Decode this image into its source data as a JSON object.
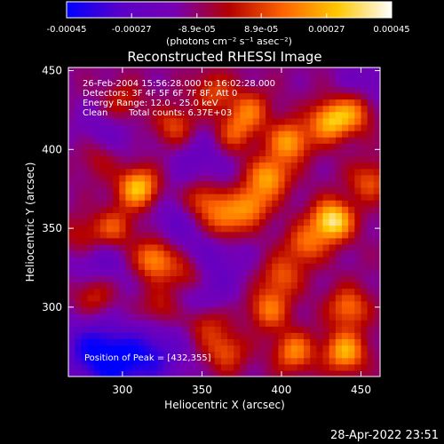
{
  "colorbar": {
    "ticks": [
      "-0.00045",
      "-0.00027",
      "-8.9e-05",
      "8.9e-05",
      "0.00027",
      "0.00045"
    ],
    "tick_values": [
      -0.00045,
      -0.00027,
      -8.9e-05,
      8.9e-05,
      0.00027,
      0.00045
    ],
    "range": [
      -0.00045,
      0.00045
    ],
    "unit": "(photons cm⁻² s⁻¹ asec⁻²)",
    "colors": [
      "#0000ff",
      "#5a00c8",
      "#7800b4",
      "#b40000",
      "#ff6400",
      "#ffc800",
      "#ffffff"
    ]
  },
  "chart_data": {
    "type": "heatmap",
    "title": "Reconstructed RHESSI Image",
    "xlabel": "Heliocentric X (arcsec)",
    "ylabel": "Heliocentric Y (arcsec)",
    "xlim": [
      266,
      462
    ],
    "ylim": [
      256,
      452
    ],
    "xticks": [
      "300",
      "350",
      "400",
      "450"
    ],
    "yticks": [
      "300",
      "350",
      "400",
      "450"
    ],
    "xtick_values": [
      300,
      350,
      400,
      450
    ],
    "ytick_values": [
      300,
      350,
      400,
      450
    ],
    "peak": [
      432,
      355
    ],
    "sources": [
      {
        "x": 432,
        "y": 355,
        "v": 1.0
      },
      {
        "x": 310,
        "y": 376,
        "v": 0.85
      },
      {
        "x": 392,
        "y": 383,
        "v": 0.7
      },
      {
        "x": 405,
        "y": 405,
        "v": 0.7
      },
      {
        "x": 430,
        "y": 418,
        "v": 0.75
      },
      {
        "x": 446,
        "y": 424,
        "v": 0.6
      },
      {
        "x": 380,
        "y": 365,
        "v": 0.6
      },
      {
        "x": 364,
        "y": 355,
        "v": 0.55
      },
      {
        "x": 350,
        "y": 368,
        "v": 0.55
      },
      {
        "x": 320,
        "y": 331,
        "v": 0.7
      },
      {
        "x": 295,
        "y": 350,
        "v": 0.5
      },
      {
        "x": 392,
        "y": 299,
        "v": 0.55
      },
      {
        "x": 440,
        "y": 272,
        "v": 0.75
      },
      {
        "x": 408,
        "y": 272,
        "v": 0.6
      },
      {
        "x": 442,
        "y": 300,
        "v": 0.55
      },
      {
        "x": 352,
        "y": 290,
        "v": 0.45
      },
      {
        "x": 365,
        "y": 272,
        "v": 0.45
      },
      {
        "x": 325,
        "y": 300,
        "v": 0.4
      },
      {
        "x": 282,
        "y": 308,
        "v": 0.4
      },
      {
        "x": 333,
        "y": 415,
        "v": 0.45
      },
      {
        "x": 357,
        "y": 437,
        "v": 0.4
      },
      {
        "x": 380,
        "y": 425,
        "v": 0.5
      },
      {
        "x": 300,
        "y": 430,
        "v": 0.35
      },
      {
        "x": 340,
        "y": 320,
        "v": 0.45
      },
      {
        "x": 415,
        "y": 340,
        "v": 0.5
      },
      {
        "x": 400,
        "y": 320,
        "v": 0.45
      },
      {
        "x": 285,
        "y": 395,
        "v": 0.3
      },
      {
        "x": 275,
        "y": 345,
        "v": 0.35
      },
      {
        "x": 455,
        "y": 380,
        "v": 0.45
      },
      {
        "x": 370,
        "y": 410,
        "v": 0.45
      }
    ],
    "dim_regions": [
      {
        "x": 295,
        "y": 265,
        "v": -0.9
      },
      {
        "x": 320,
        "y": 270,
        "v": -0.75
      },
      {
        "x": 278,
        "y": 275,
        "v": -0.7
      },
      {
        "x": 345,
        "y": 305,
        "v": -0.5
      },
      {
        "x": 285,
        "y": 330,
        "v": -0.5
      },
      {
        "x": 335,
        "y": 355,
        "v": -0.45
      },
      {
        "x": 350,
        "y": 395,
        "v": -0.45
      },
      {
        "x": 290,
        "y": 410,
        "v": -0.4
      },
      {
        "x": 455,
        "y": 440,
        "v": -0.4
      },
      {
        "x": 360,
        "y": 330,
        "v": -0.4
      }
    ]
  },
  "annotations": {
    "time_range": "26-Feb-2004 15:56:28.000 to 16:02:28.000",
    "detectors": "Detectors: 3F 4F 5F 6F 7F 8F, Att 0",
    "energy": "Energy Range: 12.0 - 25.0 keV",
    "clean_label": "Clean",
    "counts": "Total counts: 6.37E+03",
    "peak_text": "Position of Peak = [432,355]"
  },
  "footer": {
    "timestamp": "28-Apr-2022 23:51"
  }
}
